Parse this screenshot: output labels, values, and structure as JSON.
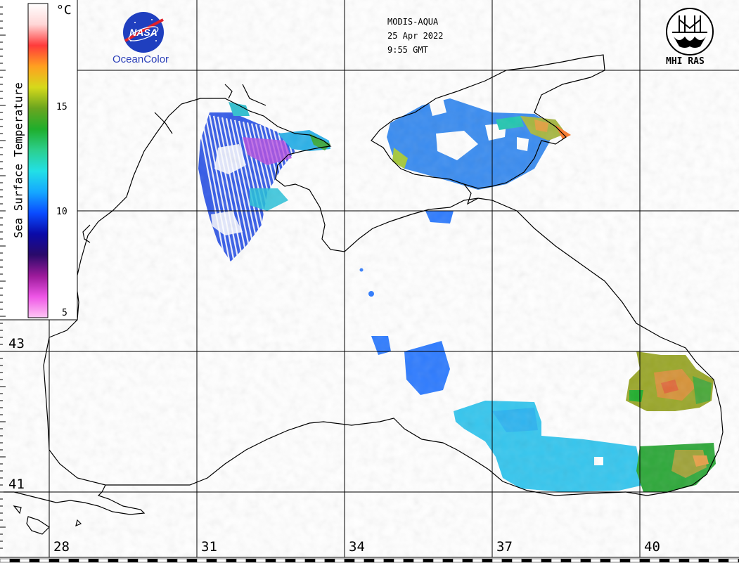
{
  "header": {
    "satellite": "MODIS-AQUA",
    "date": "25 Apr 2022",
    "time": "9:55 GMT"
  },
  "logos": {
    "nasa_text": "NASA",
    "nasa_subtitle": "OceanColor",
    "mhi_text": "MHI RAS"
  },
  "colorbar": {
    "title": "Sea Surface Temperature",
    "unit": "°C",
    "ticks": [
      "15",
      "10",
      "5"
    ],
    "range": [
      5,
      19
    ],
    "colors": [
      "#ffc6f4",
      "#ee55e6",
      "#9b1a9a",
      "#2a0a6a",
      "#0a0aa8",
      "#0a4cff",
      "#15a8ff",
      "#22e0e6",
      "#2ccf8e",
      "#1fae2c",
      "#6aa51f",
      "#d6d91b",
      "#ffa020",
      "#ff3b3b",
      "#ffd6d6",
      "#ffffff"
    ]
  },
  "grid": {
    "lat_labels": [
      "43",
      "41"
    ],
    "lon_labels": [
      "28",
      "31",
      "34",
      "37",
      "40"
    ]
  },
  "sst_colors": {
    "cool_blue": "#2f7cff",
    "cyan": "#36c6ee",
    "green": "#2ea83a",
    "olive": "#9aa72a",
    "warm": "#e07a28",
    "violet": "#6a2bd0"
  }
}
